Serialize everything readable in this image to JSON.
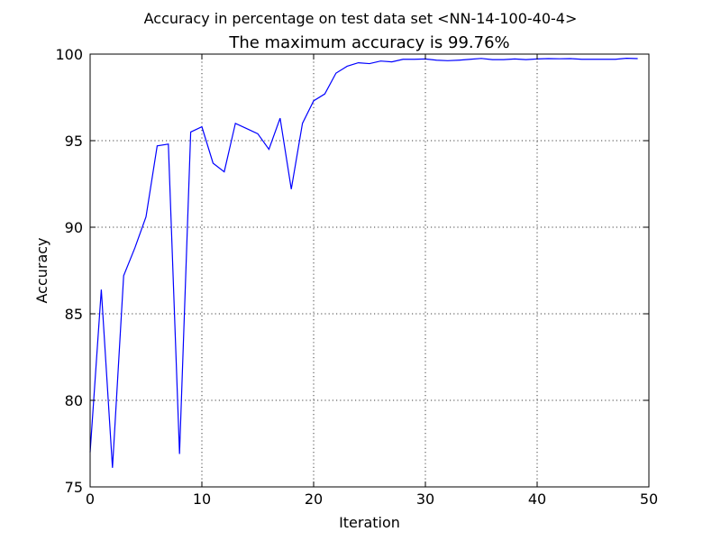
{
  "chart_data": {
    "type": "line",
    "suptitle": "Accuracy in percentage on test data set <NN-14-100-40-4>",
    "title": "The maximum accuracy is 99.76%",
    "xlabel": "Iteration",
    "ylabel": "Accuracy",
    "xlim": [
      0,
      50
    ],
    "ylim": [
      75,
      100
    ],
    "xticks": [
      "0",
      "10",
      "20",
      "30",
      "40",
      "50"
    ],
    "yticks": [
      "75",
      "80",
      "85",
      "90",
      "95",
      "100"
    ],
    "grid": true,
    "series": [
      {
        "color": "#0000ff",
        "x": [
          0,
          1,
          2,
          3,
          4,
          5,
          6,
          7,
          8,
          9,
          10,
          11,
          12,
          13,
          14,
          15,
          16,
          17,
          18,
          19,
          20,
          21,
          22,
          23,
          24,
          25,
          26,
          27,
          28,
          29,
          30,
          31,
          32,
          33,
          34,
          35,
          36,
          37,
          38,
          39,
          40,
          41,
          42,
          43,
          44,
          45,
          46,
          47,
          48,
          49
        ],
        "y": [
          77.0,
          86.4,
          76.1,
          87.2,
          88.8,
          90.6,
          94.7,
          94.8,
          76.9,
          95.5,
          95.8,
          93.7,
          93.2,
          96.0,
          95.7,
          95.4,
          94.5,
          96.3,
          92.2,
          96.0,
          97.3,
          97.7,
          98.9,
          99.3,
          99.5,
          99.45,
          99.6,
          99.55,
          99.7,
          99.7,
          99.72,
          99.65,
          99.62,
          99.65,
          99.7,
          99.75,
          99.68,
          99.68,
          99.72,
          99.68,
          99.72,
          99.74,
          99.73,
          99.74,
          99.7,
          99.7,
          99.7,
          99.7,
          99.76,
          99.74
        ]
      }
    ]
  }
}
